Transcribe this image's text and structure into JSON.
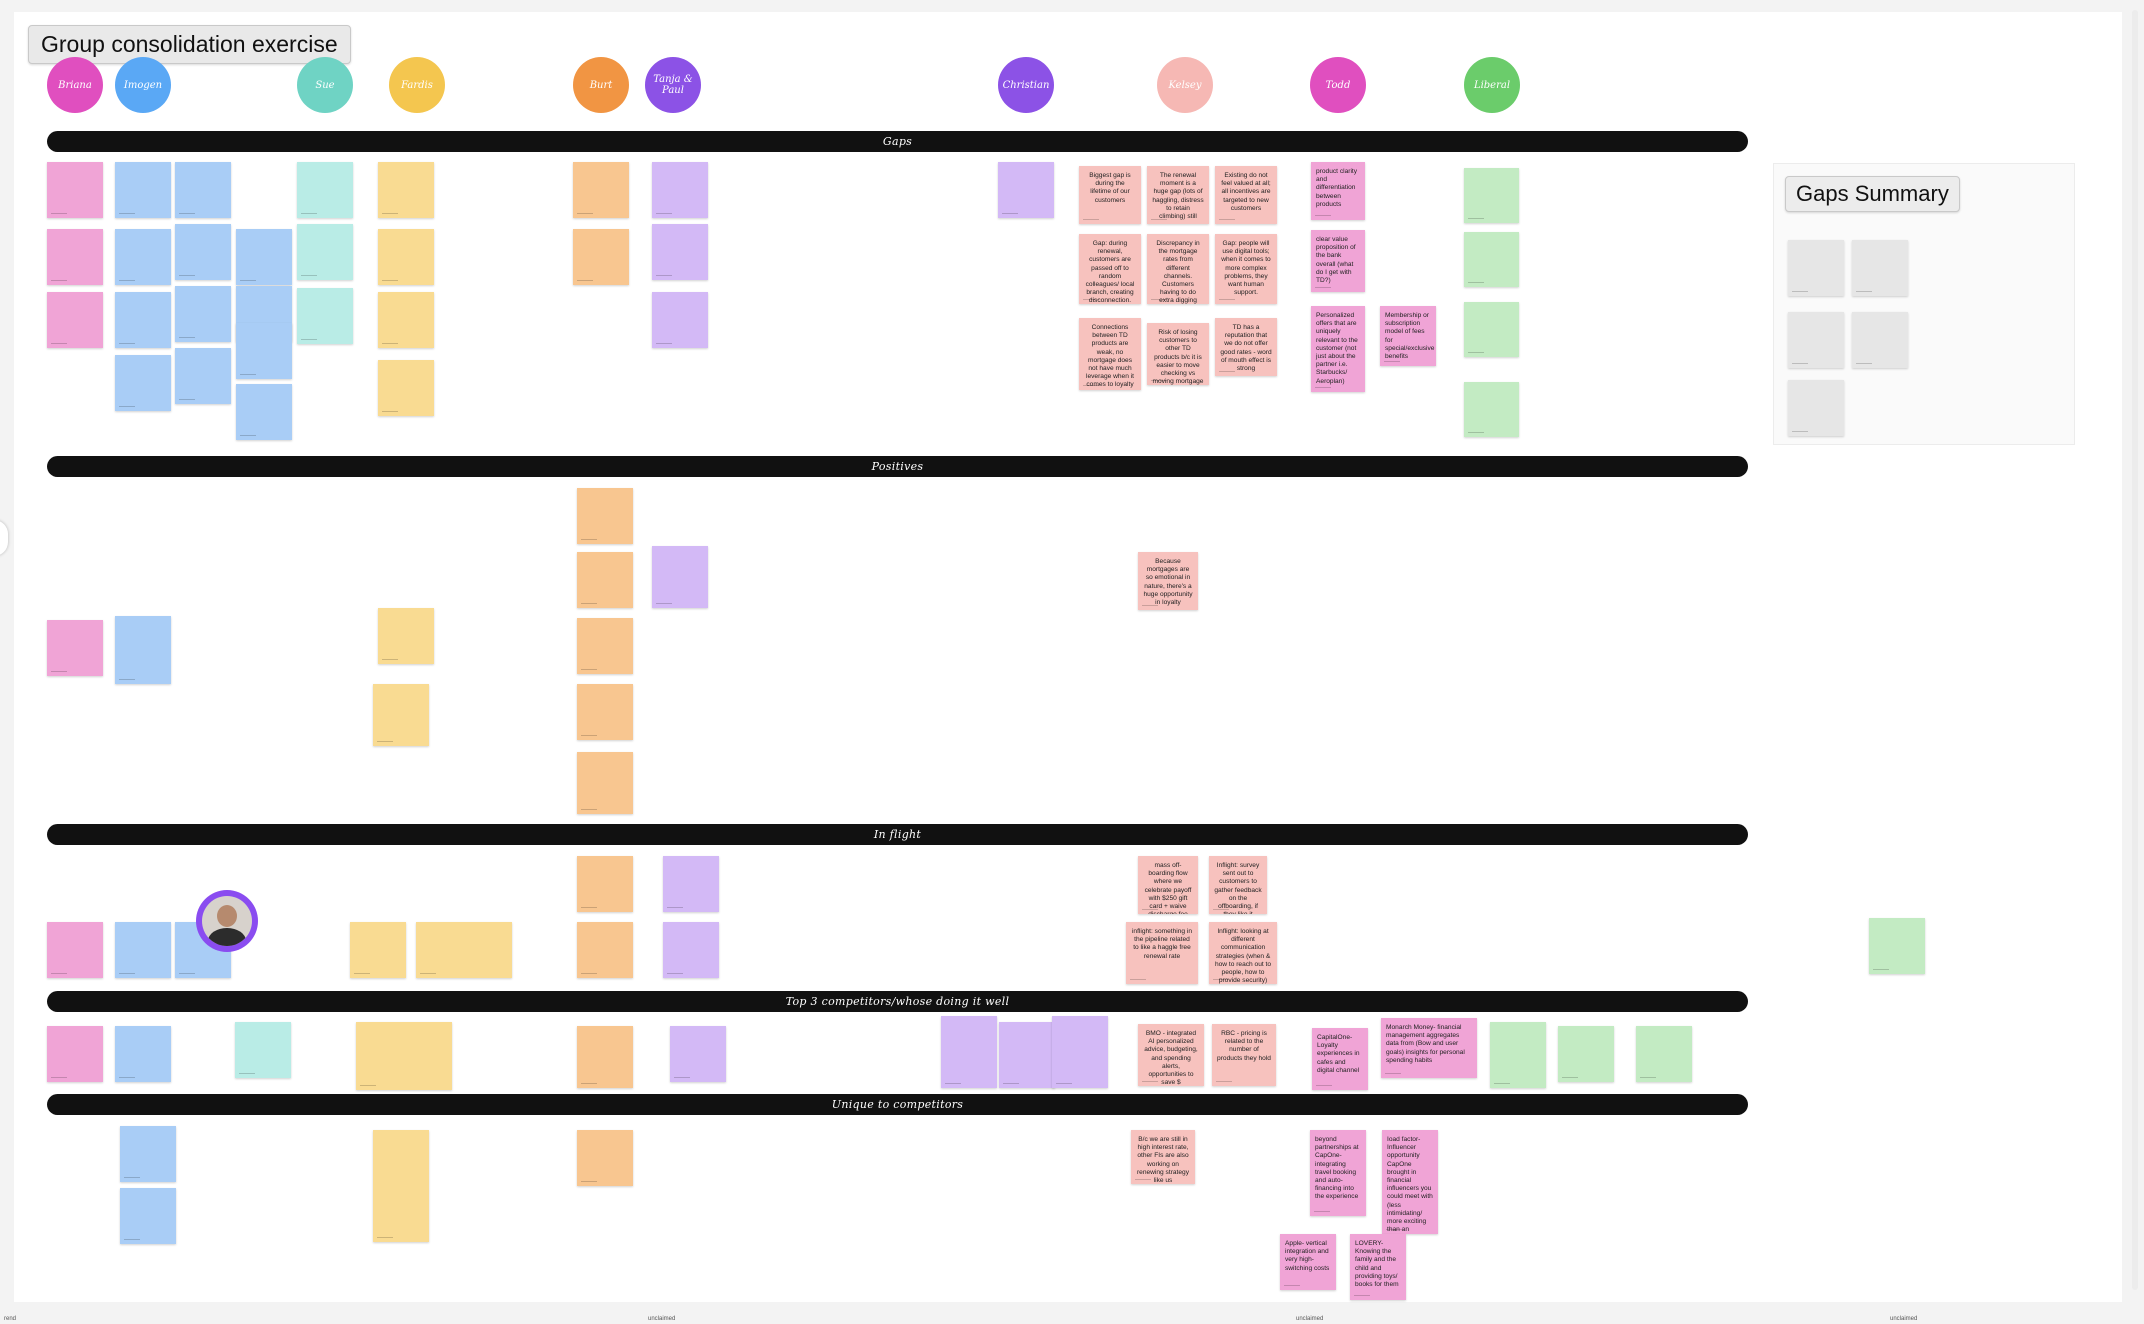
{
  "board_title": "Group consolidation exercise",
  "summary_title": "Gaps Summary",
  "participants": [
    {
      "name": "Briana",
      "color": "#e04fbf"
    },
    {
      "name": "Imogen",
      "color": "#5aa8f5"
    },
    {
      "name": "Sue",
      "color": "#6fd3c4"
    },
    {
      "name": "Fardis",
      "color": "#f4c64f"
    },
    {
      "name": "Burt",
      "color": "#f19543"
    },
    {
      "name": "Tanja & Paul",
      "color": "#8c52e6"
    },
    {
      "name": "Christian",
      "color": "#8c52e6"
    },
    {
      "name": "Kelsey",
      "color": "#f6b8b4"
    },
    {
      "name": "Todd",
      "color": "#e04fbf"
    },
    {
      "name": "Liberal",
      "color": "#6bcc6b"
    }
  ],
  "sections": [
    "Gaps",
    "Positives",
    "In flight",
    "Top 3 competitors/whose doing it well",
    "Unique to competitors"
  ],
  "notes": {
    "k1": "Biggest gap is during the lifetime of our customers",
    "k2": "The renewal moment is a huge gap (lots of haggling, distress to retain climbing) still",
    "k3": "Existing do not feel valued at all; all incentives are targeted to new customers",
    "k4": "Gap: during renewal, customers are passed off to random colleagues/ local branch, creating disconnection.",
    "k5": "Discrepancy in the mortgage rates from different channels. Customers having to do extra digging",
    "k6": "Gap: people will use digital tools; when it comes to more complex problems, they want human support.",
    "k7": "Connections between TD products are weak, no mortgage does not have much leverage when it comes to loyalty",
    "k8": "Risk of losing customers to other TD products b/c it is easier to move checking vs moving mortgage",
    "k9": "TD has a reputation that we do not offer good rates - word of mouth effect is strong",
    "t1": "product clarity and differentiation between products",
    "t2": "clear value proposition of the bank overall (what do I get with TD?)",
    "t3": "Personalized offers that are uniquely relevant to the customer (not just about the partner i.e. Starbucks/ Aeroplan)",
    "t4": "Membership or subscription model of fees for special/exclusive benefits",
    "p1": "Because mortgages are so emotional in nature, there's a huge opportunity in loyalty",
    "f1": "mass off-boarding flow where we celebrate payoff with $250 gift card + waive discharge fee",
    "f2": "Inflight: survey sent out to customers to gather feedback on the offboarding, if they like it",
    "f3": "inflight: something in the pipeline related to like a haggle free renewal rate",
    "f4": "Inflight: looking at different communication strategies (when & how to reach out to people, how to provide security)",
    "c1": "BMO - integrated AI personalized advice, budgeting, and spending alerts, opportunities to save $",
    "c2": "RBC - pricing is related to the number of products they hold",
    "c3": "CapitalOne- Loyalty experiences in cafes and digital channel",
    "c4": "Monarch Money- financial management aggregates data from (Bow and user goals) insights for personal spending habits",
    "u1": "B/c we are still in high interest rate, other FIs are also working on renewing strategy like us",
    "u2": "beyond partnerships at CapOne- integrating travel booking and auto-financing into the experience",
    "u3": "Ioad factor- Influencer opportunity CapOne brought in financial influencers you could meet with (less intimidating/ more exciting than an advisor)",
    "u4": "Apple- vertical integration and very high-switching costs",
    "u5": "LOVERY- Knowing the family and the child and providing toys/ books for them"
  },
  "footer": {
    "left": "rend",
    "mid1": "unclaimed",
    "mid2": "unclaimed",
    "right": "unclaimed"
  }
}
